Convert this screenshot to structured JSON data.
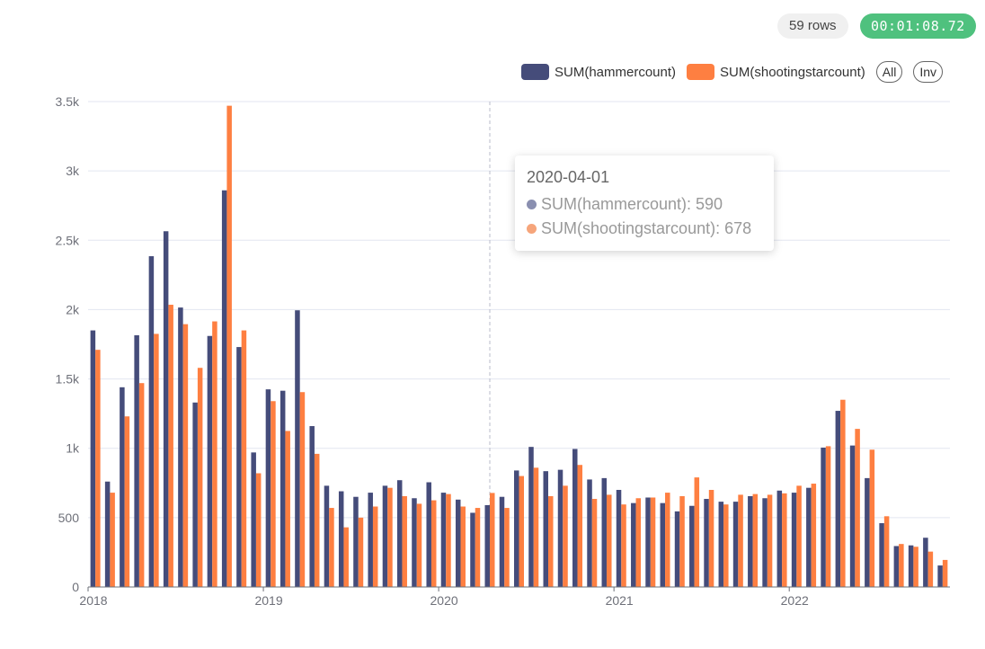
{
  "header": {
    "rows_label": "59 rows",
    "elapsed": "00:01:08.72"
  },
  "legend": {
    "all_label": "All",
    "inv_label": "Inv"
  },
  "tooltip": {
    "title": "2020-04-01",
    "rows": [
      {
        "text": "SUM(hammercount): 590",
        "color": "#8a8fb0"
      },
      {
        "text": "SUM(shootingstarcount): 678",
        "color": "#f6a57b"
      }
    ]
  },
  "colors": {
    "series1": "#454c7a",
    "series2": "#fe7f41",
    "grid": "#e3e6f0",
    "axis": "#6e7079",
    "hover_line": "#b9bccb"
  },
  "chart_data": {
    "type": "bar",
    "ylim": [
      0,
      3500
    ],
    "yticks": [
      "0",
      "500",
      "1k",
      "1.5k",
      "2k",
      "2.5k",
      "3k",
      "3.5k"
    ],
    "xticks": [
      "2018",
      "2019",
      "2020",
      "2021",
      "2022"
    ],
    "hover_category": "2020-04-01",
    "categories": [
      "2018-01-01",
      "2018-02-01",
      "2018-03-01",
      "2018-04-01",
      "2018-05-01",
      "2018-06-01",
      "2018-07-01",
      "2018-08-01",
      "2018-09-01",
      "2018-10-01",
      "2018-11-01",
      "2018-12-01",
      "2019-01-01",
      "2019-02-01",
      "2019-03-01",
      "2019-04-01",
      "2019-05-01",
      "2019-06-01",
      "2019-07-01",
      "2019-08-01",
      "2019-09-01",
      "2019-10-01",
      "2019-11-01",
      "2019-12-01",
      "2020-01-01",
      "2020-02-01",
      "2020-03-01",
      "2020-04-01",
      "2020-05-01",
      "2020-06-01",
      "2020-07-01",
      "2020-08-01",
      "2020-09-01",
      "2020-10-01",
      "2020-11-01",
      "2020-12-01",
      "2021-01-01",
      "2021-02-01",
      "2021-03-01",
      "2021-04-01",
      "2021-05-01",
      "2021-06-01",
      "2021-07-01",
      "2021-08-01",
      "2021-09-01",
      "2021-10-01",
      "2021-11-01",
      "2021-12-01",
      "2022-01-01",
      "2022-02-01",
      "2022-03-01",
      "2022-04-01",
      "2022-05-01",
      "2022-06-01",
      "2022-07-01",
      "2022-08-01",
      "2022-09-01",
      "2022-10-01",
      "2022-11-01"
    ],
    "series": [
      {
        "name": "SUM(hammercount)",
        "values": [
          1850,
          760,
          1440,
          1815,
          2385,
          2565,
          2015,
          1330,
          1810,
          2860,
          1730,
          970,
          1425,
          1415,
          1995,
          1160,
          730,
          690,
          650,
          680,
          730,
          770,
          640,
          755,
          680,
          630,
          535,
          590,
          650,
          840,
          1010,
          835,
          845,
          995,
          775,
          785,
          700,
          605,
          645,
          605,
          545,
          585,
          635,
          615,
          615,
          655,
          640,
          695,
          680,
          715,
          1005,
          1270,
          1020,
          785,
          460,
          295,
          300,
          355,
          155
        ]
      },
      {
        "name": "SUM(shootingstarcount)",
        "values": [
          1710,
          680,
          1230,
          1470,
          1825,
          2035,
          1895,
          1580,
          1915,
          3470,
          1850,
          820,
          1340,
          1125,
          1405,
          960,
          570,
          430,
          500,
          580,
          715,
          655,
          600,
          625,
          670,
          580,
          570,
          678,
          570,
          800,
          860,
          655,
          730,
          880,
          635,
          665,
          595,
          640,
          645,
          680,
          655,
          790,
          700,
          595,
          665,
          670,
          665,
          675,
          730,
          745,
          1015,
          1350,
          1140,
          990,
          510,
          310,
          290,
          255,
          195
        ]
      }
    ]
  }
}
